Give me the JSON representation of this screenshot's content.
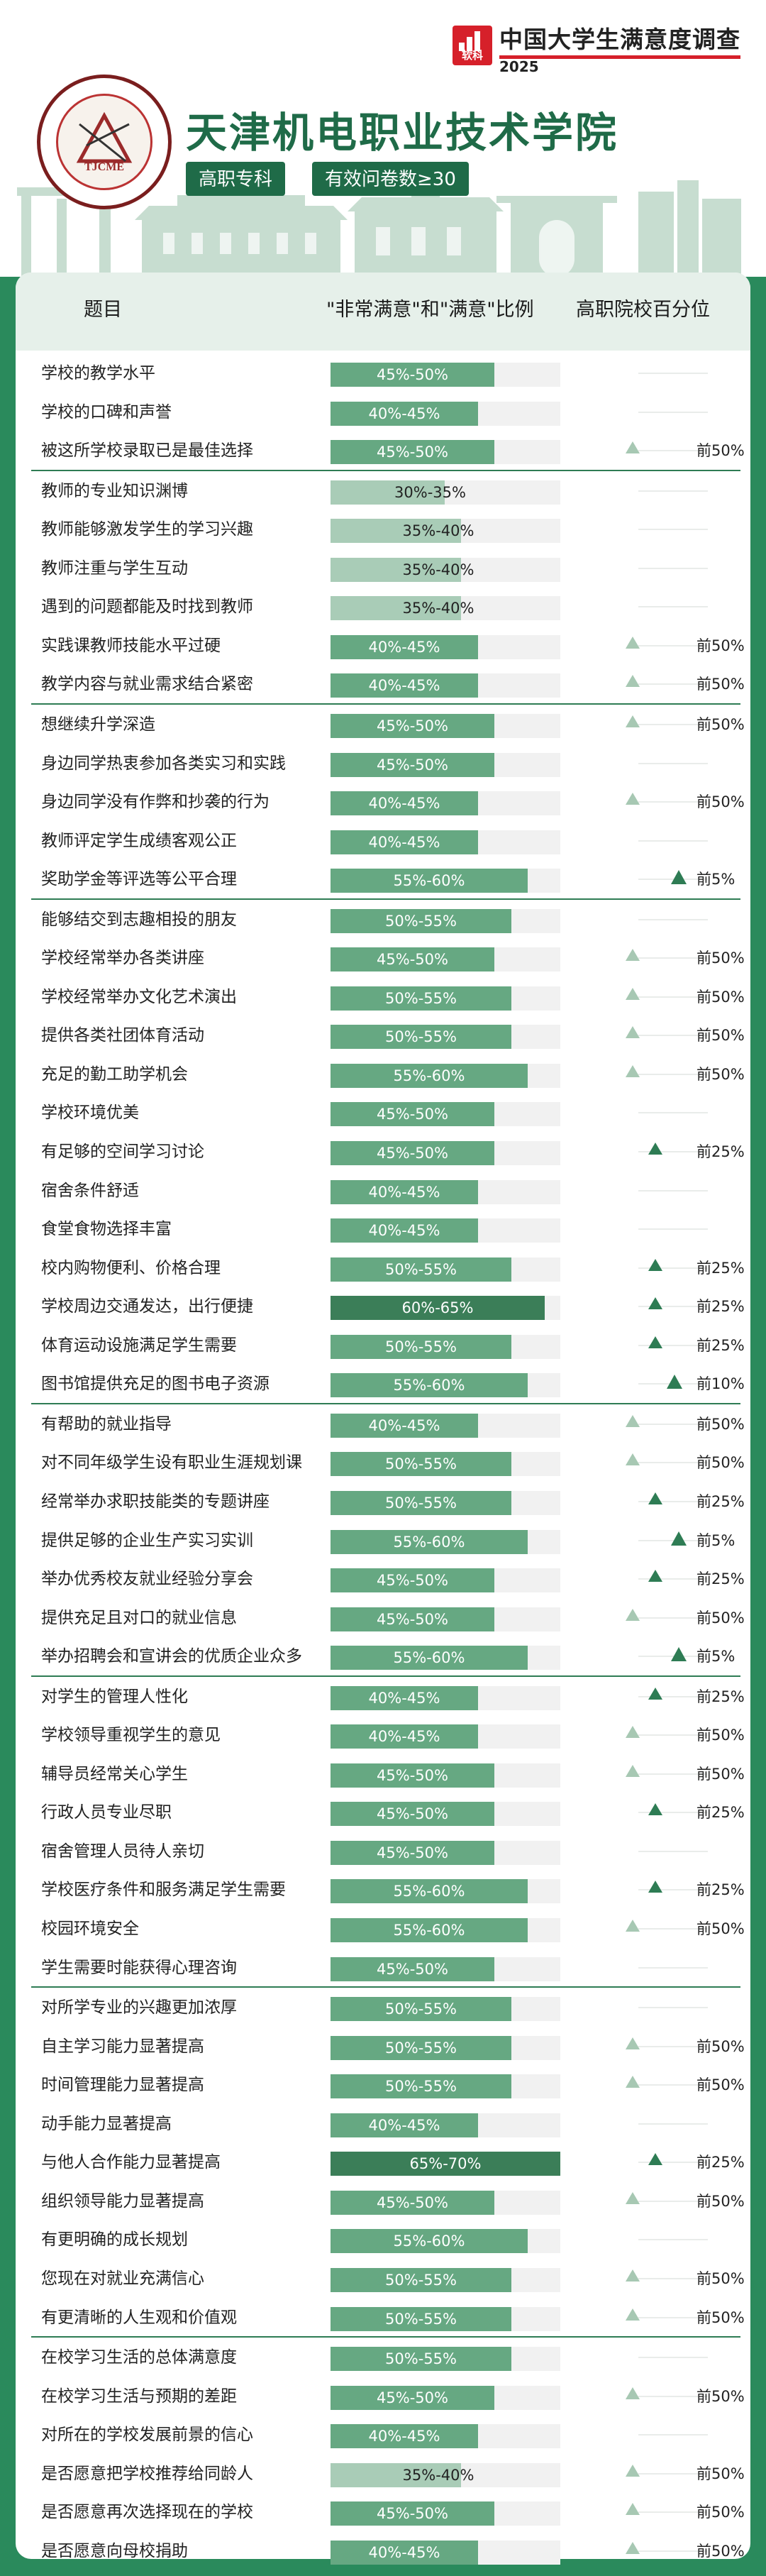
{
  "brand": {
    "title": "中国大学生满意度调查",
    "year": "2025",
    "logo_text": "软科",
    "accent": "#d6202a"
  },
  "school": {
    "name": "天津机电职业技术学院",
    "tags": [
      "高职专科",
      "有效问卷数≥30"
    ],
    "emblem_text": "TJCME"
  },
  "table": {
    "headers": {
      "item": "题目",
      "ratio": "\"非常满意\"和\"满意\"比例",
      "pct": "高职院校百分位"
    },
    "colors": {
      "light": "#a9ccb7",
      "mid": "#66a882",
      "dark": "#2e7c54",
      "darker": "#3b7e58",
      "track": "#f1f1f1"
    },
    "groups": [
      [
        {
          "label": "学校的教学水平",
          "ratio": "45%-50%",
          "pct": ""
        },
        {
          "label": "学校的口碑和声誉",
          "ratio": "40%-45%",
          "pct": ""
        },
        {
          "label": "被这所学校录取已是最佳选择",
          "ratio": "45%-50%",
          "pct": "前50%"
        }
      ],
      [
        {
          "label": "教师的专业知识渊博",
          "ratio": "30%-35%",
          "pct": ""
        },
        {
          "label": "教师能够激发学生的学习兴趣",
          "ratio": "35%-40%",
          "pct": ""
        },
        {
          "label": "教师注重与学生互动",
          "ratio": "35%-40%",
          "pct": ""
        },
        {
          "label": "遇到的问题都能及时找到教师",
          "ratio": "35%-40%",
          "pct": ""
        },
        {
          "label": "实践课教师技能水平过硬",
          "ratio": "40%-45%",
          "pct": "前50%"
        },
        {
          "label": "教学内容与就业需求结合紧密",
          "ratio": "40%-45%",
          "pct": "前50%"
        }
      ],
      [
        {
          "label": "想继续升学深造",
          "ratio": "45%-50%",
          "pct": "前50%"
        },
        {
          "label": "身边同学热衷参加各类实习和实践",
          "ratio": "45%-50%",
          "pct": ""
        },
        {
          "label": "身边同学没有作弊和抄袭的行为",
          "ratio": "40%-45%",
          "pct": "前50%"
        },
        {
          "label": "教师评定学生成绩客观公正",
          "ratio": "40%-45%",
          "pct": ""
        },
        {
          "label": "奖助学金等评选等公平合理",
          "ratio": "55%-60%",
          "pct": "前5%"
        }
      ],
      [
        {
          "label": "能够结交到志趣相投的朋友",
          "ratio": "50%-55%",
          "pct": ""
        },
        {
          "label": "学校经常举办各类讲座",
          "ratio": "45%-50%",
          "pct": "前50%"
        },
        {
          "label": "学校经常举办文化艺术演出",
          "ratio": "50%-55%",
          "pct": "前50%"
        },
        {
          "label": "提供各类社团体育活动",
          "ratio": "50%-55%",
          "pct": "前50%"
        },
        {
          "label": "充足的勤工助学机会",
          "ratio": "55%-60%",
          "pct": "前50%"
        },
        {
          "label": "学校环境优美",
          "ratio": "45%-50%",
          "pct": ""
        },
        {
          "label": "有足够的空间学习讨论",
          "ratio": "45%-50%",
          "pct": "前25%"
        },
        {
          "label": "宿舍条件舒适",
          "ratio": "40%-45%",
          "pct": ""
        },
        {
          "label": "食堂食物选择丰富",
          "ratio": "40%-45%",
          "pct": ""
        },
        {
          "label": "校内购物便利、价格合理",
          "ratio": "50%-55%",
          "pct": "前25%"
        },
        {
          "label": "学校周边交通发达，出行便捷",
          "ratio": "60%-65%",
          "pct": "前25%"
        },
        {
          "label": "体育运动设施满足学生需要",
          "ratio": "50%-55%",
          "pct": "前25%"
        },
        {
          "label": "图书馆提供充足的图书电子资源",
          "ratio": "55%-60%",
          "pct": "前10%"
        }
      ],
      [
        {
          "label": "有帮助的就业指导",
          "ratio": "40%-45%",
          "pct": "前50%"
        },
        {
          "label": "对不同年级学生设有职业生涯规划课",
          "ratio": "50%-55%",
          "pct": "前50%"
        },
        {
          "label": "经常举办求职技能类的专题讲座",
          "ratio": "50%-55%",
          "pct": "前25%"
        },
        {
          "label": "提供足够的企业生产实习实训",
          "ratio": "55%-60%",
          "pct": "前5%"
        },
        {
          "label": "举办优秀校友就业经验分享会",
          "ratio": "45%-50%",
          "pct": "前25%"
        },
        {
          "label": "提供充足且对口的就业信息",
          "ratio": "45%-50%",
          "pct": "前50%"
        },
        {
          "label": "举办招聘会和宣讲会的优质企业众多",
          "ratio": "55%-60%",
          "pct": "前5%"
        }
      ],
      [
        {
          "label": "对学生的管理人性化",
          "ratio": "40%-45%",
          "pct": "前25%"
        },
        {
          "label": "学校领导重视学生的意见",
          "ratio": "40%-45%",
          "pct": "前50%"
        },
        {
          "label": "辅导员经常关心学生",
          "ratio": "45%-50%",
          "pct": "前50%"
        },
        {
          "label": "行政人员专业尽职",
          "ratio": "45%-50%",
          "pct": "前25%"
        },
        {
          "label": "宿舍管理人员待人亲切",
          "ratio": "45%-50%",
          "pct": ""
        },
        {
          "label": "学校医疗条件和服务满足学生需要",
          "ratio": "55%-60%",
          "pct": "前25%"
        },
        {
          "label": "校园环境安全",
          "ratio": "55%-60%",
          "pct": "前50%"
        },
        {
          "label": "学生需要时能获得心理咨询",
          "ratio": "45%-50%",
          "pct": ""
        }
      ],
      [
        {
          "label": "对所学专业的兴趣更加浓厚",
          "ratio": "50%-55%",
          "pct": ""
        },
        {
          "label": "自主学习能力显著提高",
          "ratio": "50%-55%",
          "pct": "前50%"
        },
        {
          "label": "时间管理能力显著提高",
          "ratio": "50%-55%",
          "pct": "前50%"
        },
        {
          "label": "动手能力显著提高",
          "ratio": "40%-45%",
          "pct": ""
        },
        {
          "label": "与他人合作能力显著提高",
          "ratio": "65%-70%",
          "pct": "前25%"
        },
        {
          "label": "组织领导能力显著提高",
          "ratio": "45%-50%",
          "pct": "前50%"
        },
        {
          "label": "有更明确的成长规划",
          "ratio": "55%-60%",
          "pct": ""
        },
        {
          "label": "您现在对就业充满信心",
          "ratio": "50%-55%",
          "pct": "前50%"
        },
        {
          "label": "有更清晰的人生观和价值观",
          "ratio": "50%-55%",
          "pct": "前50%"
        }
      ],
      [
        {
          "label": "在校学习生活的总体满意度",
          "ratio": "50%-55%",
          "pct": ""
        },
        {
          "label": "在校学习生活与预期的差距",
          "ratio": "45%-50%",
          "pct": "前50%"
        },
        {
          "label": "对所在的学校发展前景的信心",
          "ratio": "40%-45%",
          "pct": ""
        },
        {
          "label": "是否愿意把学校推荐给同龄人",
          "ratio": "35%-40%",
          "pct": "前50%"
        },
        {
          "label": "是否愿意再次选择现在的学校",
          "ratio": "45%-50%",
          "pct": "前50%"
        },
        {
          "label": "是否愿意向母校捐助",
          "ratio": "40%-45%",
          "pct": "前50%"
        }
      ]
    ]
  }
}
